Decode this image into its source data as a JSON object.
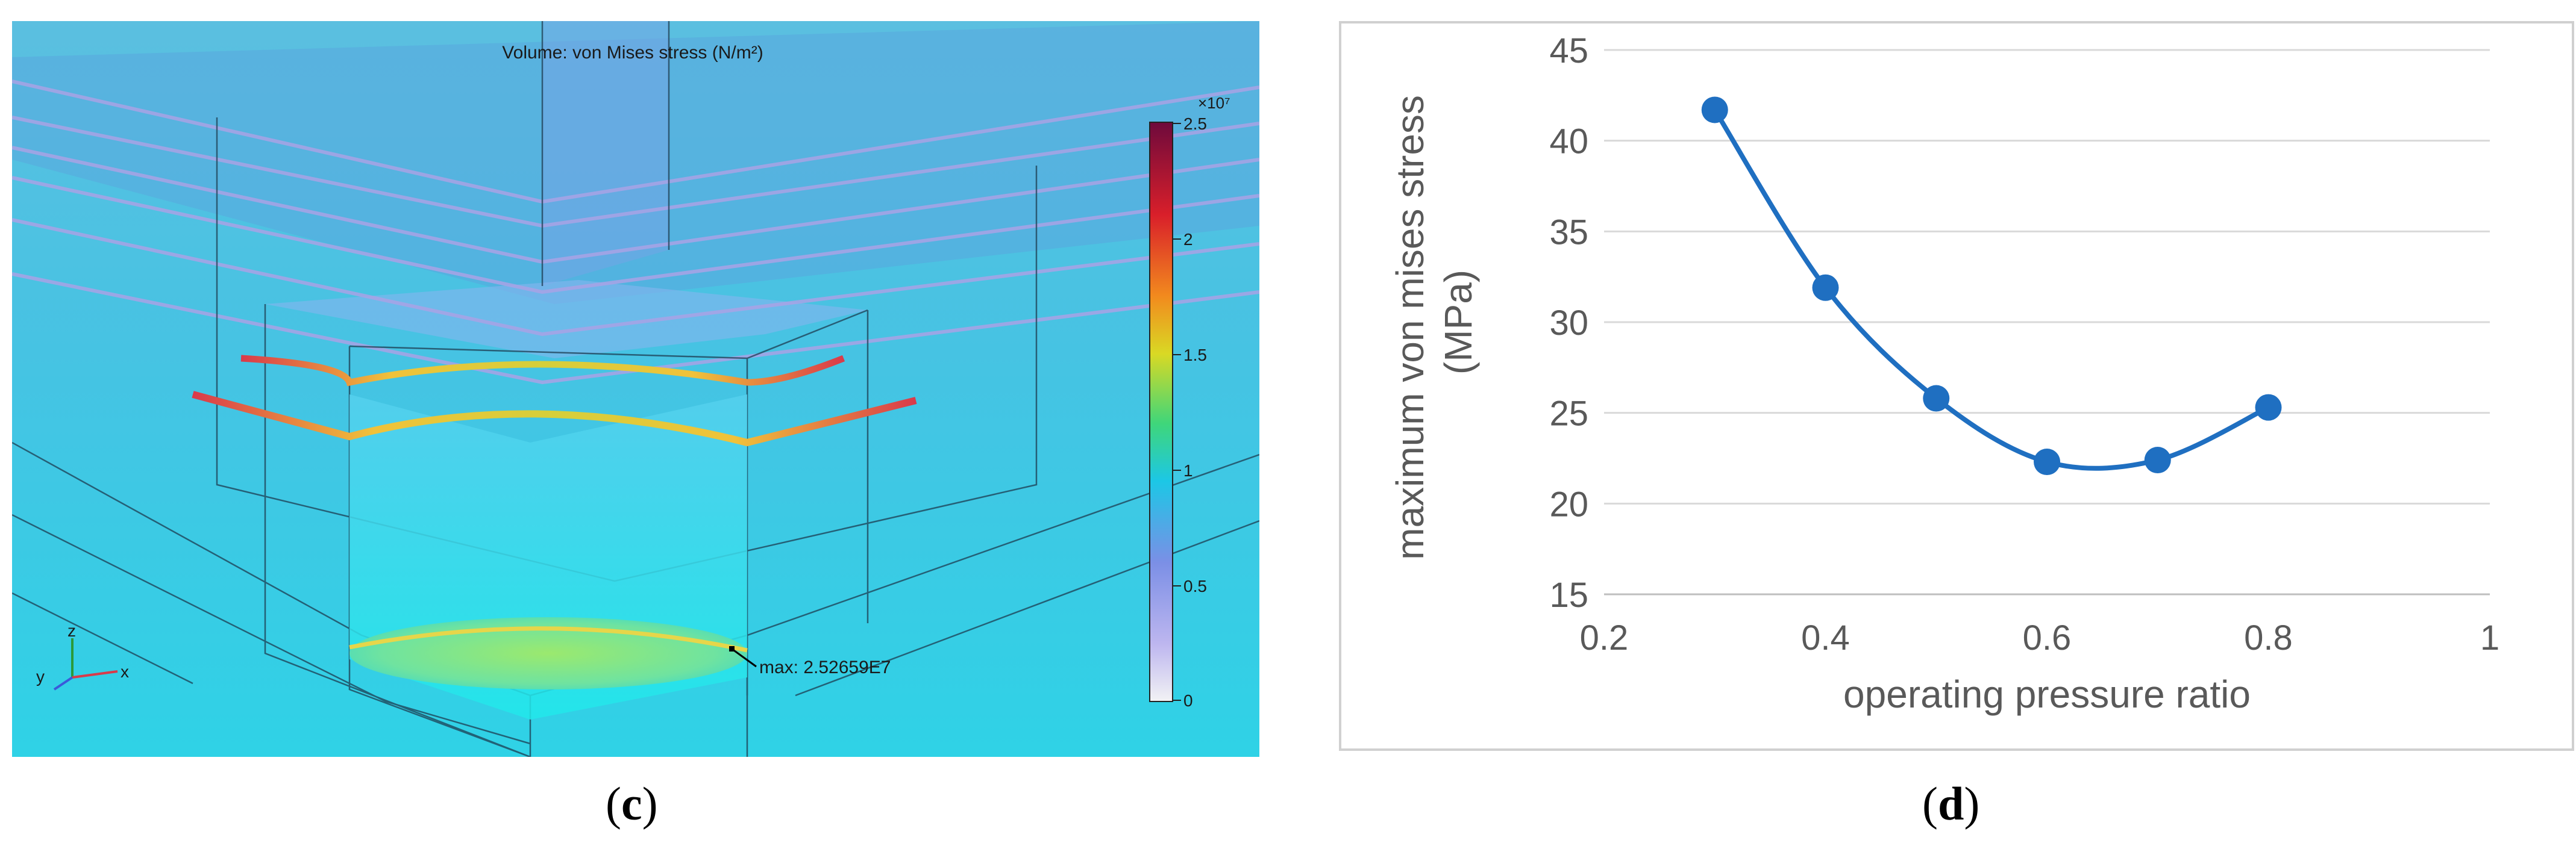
{
  "panel_c": {
    "label_open": "(",
    "label_letter": "c",
    "label_close": ")",
    "plot_title": "Volume: von Mises stress (N/m²)",
    "colorbar_exponent": "×10⁷",
    "colorbar_ticks": [
      "2.5",
      "2",
      "1.5",
      "1",
      "0.5",
      "0"
    ],
    "max_annotation": "max: 2.52659E7",
    "triad_axes": {
      "z": "z",
      "y": "y",
      "x": "x"
    },
    "colors": {
      "background": "#3fc6e6",
      "colormap_high": "#7a0a3a",
      "colormap_low": "#f2f2f2"
    }
  },
  "panel_d": {
    "label_open": "(",
    "label_letter": "d",
    "label_close": ")"
  },
  "chart_data": {
    "type": "line",
    "title": "",
    "xlabel": "operating pressure ratio",
    "ylabel": "maximum von mises stress (MPa)",
    "ylabel_lines": [
      "maximum von mises stress",
      "(MPa)"
    ],
    "x": [
      0.3,
      0.4,
      0.5,
      0.6,
      0.7,
      0.8
    ],
    "series": [
      {
        "values": [
          41.7,
          31.9,
          25.8,
          22.3,
          22.4,
          25.3
        ],
        "color": "#1f6fc1",
        "marker": "circle",
        "smooth": true
      }
    ],
    "xlim": [
      0.2,
      1
    ],
    "ylim": [
      15,
      45
    ],
    "xticks": [
      0.2,
      0.4,
      0.6,
      0.8,
      1
    ],
    "xtick_labels": [
      "0.2",
      "0.4",
      "0.6",
      "0.8",
      "1"
    ],
    "yticks": [
      15,
      20,
      25,
      30,
      35,
      40,
      45
    ],
    "ytick_labels": [
      "15",
      "20",
      "25",
      "30",
      "35",
      "40",
      "45"
    ],
    "grid": "horizontal",
    "legend": "none"
  }
}
